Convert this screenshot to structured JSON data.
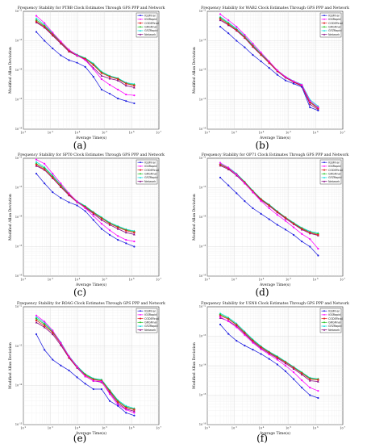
{
  "figure": {
    "panel_labels": [
      "(a)",
      "(b)",
      "(c)",
      "(d)",
      "(e)",
      "(f)"
    ]
  },
  "series_styles": [
    {
      "name": "IGSFinal",
      "color": "#2020e0",
      "marker": "circle"
    },
    {
      "name": "IGSRapid",
      "color": "#ff00ff",
      "marker": "circle"
    },
    {
      "name": "CODEFinal",
      "color": "#e02020",
      "marker": "square"
    },
    {
      "name": "GRGFinal",
      "color": "#20c020",
      "marker": "diamond"
    },
    {
      "name": "GFZRapid",
      "color": "#00d8d8",
      "marker": "triangle"
    },
    {
      "name": "Network",
      "color": "#800080",
      "marker": "triangle"
    }
  ],
  "chart_data": [
    {
      "type": "line",
      "title": "Frequency Stability for PTBB Clock Estimates Through GPS PPP and Network",
      "xlabel": "Average Time(s)",
      "ylabel": "Modified Allan Deviation",
      "xscale": "log",
      "yscale": "log",
      "xlim": [
        100,
        10000000
      ],
      "ylim": [
        1e-16,
        1e-12
      ],
      "legend": "top-right",
      "grid": true,
      "x": [
        300,
        600,
        1200,
        2400,
        4800,
        9600,
        19200,
        38400,
        76800,
        153600,
        307200,
        614400,
        1228800
      ],
      "series": [
        {
          "name": "IGSFinal",
          "values": [
            2e-13,
            1e-13,
            5.5e-14,
            3.2e-14,
            2.2e-14,
            1.8e-14,
            1.3e-14,
            6e-15,
            2.2e-15,
            1.6e-15,
            1.1e-15,
            9e-16,
            7.5e-16
          ]
        },
        {
          "name": "IGSRapid",
          "values": [
            7e-13,
            4e-13,
            1.9e-13,
            9.5e-14,
            5e-14,
            3.2e-14,
            2.2e-14,
            1.1e-14,
            5e-15,
            3.2e-15,
            2.2e-15,
            1.5e-15,
            1.4e-15
          ]
        },
        {
          "name": "CODEFinal",
          "values": [
            4.5e-13,
            3e-13,
            1.6e-13,
            8.5e-14,
            4.5e-14,
            3.2e-14,
            2.4e-14,
            1.5e-14,
            8e-15,
            6e-15,
            5e-15,
            3.5e-15,
            3e-15
          ]
        },
        {
          "name": "GRGFinal",
          "values": [
            5e-13,
            3.2e-13,
            1.7e-13,
            9e-14,
            4.7e-14,
            3.3e-14,
            2.5e-14,
            1.6e-14,
            8.5e-15,
            6.2e-15,
            5.2e-15,
            3.6e-15,
            3.2e-15
          ]
        },
        {
          "name": "GFZRapid",
          "values": [
            5.8e-13,
            3.5e-13,
            1.8e-13,
            9.2e-14,
            4.8e-14,
            3.4e-14,
            2.6e-14,
            1.7e-14,
            9e-15,
            6.5e-15,
            5.4e-15,
            3.8e-15,
            3.4e-15
          ]
        },
        {
          "name": "Network",
          "values": [
            4.2e-13,
            2.8e-13,
            1.5e-13,
            8e-14,
            4.3e-14,
            3.1e-14,
            2.3e-14,
            1.2e-14,
            6.5e-15,
            5.2e-15,
            4.5e-15,
            3e-15,
            2.6e-15
          ]
        }
      ]
    },
    {
      "type": "line",
      "title": "Frequency Stability for WAB2 Clock Estimates Through GPS PPP and Network",
      "xlabel": "Average Time(s)",
      "ylabel": "Modified Allan Deviation",
      "xscale": "log",
      "yscale": "log",
      "xlim": [
        100,
        10000000
      ],
      "ylim": [
        1e-16,
        1e-12
      ],
      "legend": "top-right",
      "grid": true,
      "x": [
        300,
        600,
        1200,
        2400,
        4800,
        9600,
        19200,
        38400,
        76800,
        153600,
        307200,
        614400,
        1228800
      ],
      "series": [
        {
          "name": "IGSFinal",
          "values": [
            3e-13,
            1.8e-13,
            1e-13,
            6e-14,
            3.3e-14,
            2e-14,
            1.2e-14,
            7e-15,
            4.5e-15,
            3.5e-15,
            2.7e-15,
            5.5e-16,
            4.3e-16
          ]
        },
        {
          "name": "IGSRapid",
          "values": [
            8e-13,
            5e-13,
            3e-13,
            1.6e-13,
            8e-14,
            4e-14,
            2e-14,
            1e-14,
            6e-15,
            4.2e-15,
            3.2e-15,
            9e-16,
            5.5e-16
          ]
        },
        {
          "name": "CODEFinal",
          "values": [
            5.5e-13,
            3.6e-13,
            2.3e-13,
            1.3e-13,
            6.5e-14,
            3.4e-14,
            1.8e-14,
            9.5e-15,
            5.8e-15,
            4e-15,
            3e-15,
            8e-16,
            5e-16
          ]
        },
        {
          "name": "GRGFinal",
          "values": [
            6e-13,
            3.9e-13,
            2.4e-13,
            1.35e-13,
            6.8e-14,
            3.5e-14,
            1.9e-14,
            9.8e-15,
            5.9e-15,
            4.1e-15,
            3.1e-15,
            8.5e-16,
            5.2e-16
          ]
        },
        {
          "name": "GFZRapid",
          "values": [
            6.5e-13,
            4.2e-13,
            2.6e-13,
            1.45e-13,
            7.2e-14,
            3.7e-14,
            1.95e-14,
            1e-14,
            6.1e-15,
            4.3e-15,
            3.3e-15,
            1e-15,
            6e-16
          ]
        },
        {
          "name": "Network",
          "values": [
            5e-13,
            3.4e-13,
            2.2e-13,
            1.25e-13,
            6.2e-14,
            3.3e-14,
            1.75e-14,
            9.2e-15,
            5.6e-15,
            3.9e-15,
            2.9e-15,
            7e-16,
            4.6e-16
          ]
        }
      ]
    },
    {
      "type": "line",
      "title": "Frequency Stability for SPT0 Clock Estimates Through GPS PPP and Network",
      "xlabel": "Average Time(s)",
      "ylabel": "Modified Allan Deviation",
      "xscale": "log",
      "yscale": "log",
      "xlim": [
        100,
        10000000
      ],
      "ylim": [
        1e-16,
        1e-12
      ],
      "legend": "top-right",
      "grid": true,
      "x": [
        300,
        600,
        1200,
        2400,
        4800,
        9600,
        19200,
        38400,
        76800,
        153600,
        307200,
        614400,
        1228800
      ],
      "series": [
        {
          "name": "IGSFinal",
          "values": [
            3e-13,
            1.4e-13,
            7e-14,
            4.5e-14,
            3.2e-14,
            2.5e-14,
            1.6e-14,
            8e-15,
            4e-15,
            2.5e-15,
            1.7e-15,
            1.3e-15,
            1e-15
          ]
        },
        {
          "name": "IGSRapid",
          "values": [
            9e-13,
            6.5e-13,
            3e-13,
            1.4e-13,
            6.5e-14,
            3.4e-14,
            2e-14,
            1.1e-14,
            6e-15,
            3.6e-15,
            2.3e-15,
            1.7e-15,
            1.5e-15
          ]
        },
        {
          "name": "CODEFinal",
          "values": [
            6e-13,
            4.2e-13,
            2.2e-13,
            1.1e-13,
            5.8e-14,
            3.3e-14,
            2.2e-14,
            1.4e-14,
            9e-15,
            6e-15,
            4.5e-15,
            3.5e-15,
            3e-15
          ]
        },
        {
          "name": "GRGFinal",
          "values": [
            6.5e-13,
            4.6e-13,
            2.4e-13,
            1.2e-13,
            6e-14,
            3.4e-14,
            2.3e-14,
            1.45e-14,
            9.5e-15,
            6.3e-15,
            4.7e-15,
            3.7e-15,
            3.2e-15
          ]
        },
        {
          "name": "GFZRapid",
          "values": [
            7.5e-13,
            5e-13,
            2.6e-13,
            1.25e-13,
            6.2e-14,
            3.5e-14,
            2.4e-14,
            1.5e-14,
            1e-14,
            6.6e-15,
            5e-15,
            3.9e-15,
            3.4e-15
          ]
        },
        {
          "name": "Network",
          "values": [
            5.5e-13,
            4e-13,
            2.1e-13,
            1.05e-13,
            5.5e-14,
            3.2e-14,
            2.1e-14,
            1.3e-14,
            8e-15,
            5.5e-15,
            4e-15,
            3e-15,
            2.6e-15
          ]
        }
      ]
    },
    {
      "type": "line",
      "title": "Frequency Stability for OP71 Clock Estimates Through GPS PPP and Network",
      "xlabel": "Average Time(s)",
      "ylabel": "Modified Allan Deviation",
      "xscale": "log",
      "yscale": "log",
      "xlim": [
        100,
        10000000
      ],
      "ylim": [
        1e-16,
        1e-12
      ],
      "legend": "top-right",
      "grid": true,
      "x": [
        300,
        600,
        1200,
        2400,
        4800,
        9600,
        19200,
        38400,
        76800,
        153600,
        307200,
        614400,
        1228800
      ],
      "series": [
        {
          "name": "IGSFinal",
          "values": [
            2.2e-13,
            1.2e-13,
            6.5e-14,
            3.5e-14,
            2e-14,
            1.3e-14,
            8.5e-15,
            5.5e-15,
            3.8e-15,
            2.5e-15,
            1.5e-15,
            1e-15,
            5e-16
          ]
        },
        {
          "name": "IGSRapid",
          "values": [
            7e-13,
            4.8e-13,
            2.8e-13,
            1.4e-13,
            7e-14,
            3.5e-14,
            2e-14,
            1.2e-14,
            7.5e-15,
            4.5e-15,
            2.7e-15,
            1.8e-15,
            8.5e-16
          ]
        },
        {
          "name": "CODEFinal",
          "values": [
            6e-13,
            4.5e-13,
            2.8e-13,
            1.5e-13,
            7.5e-14,
            4e-14,
            2.5e-14,
            1.5e-14,
            9.5e-15,
            6e-15,
            4e-15,
            3e-15,
            2.5e-15
          ]
        },
        {
          "name": "GRGFinal",
          "values": [
            6.2e-13,
            4.6e-13,
            2.9e-13,
            1.55e-13,
            7.7e-14,
            4.1e-14,
            2.6e-14,
            1.55e-14,
            9.8e-15,
            6.2e-15,
            4.2e-15,
            3.1e-15,
            2.7e-15
          ]
        },
        {
          "name": "GFZRapid",
          "values": [
            6.6e-13,
            4.9e-13,
            3e-13,
            1.6e-13,
            8e-14,
            4.2e-14,
            2.7e-14,
            1.6e-14,
            1e-14,
            6.5e-15,
            4.4e-15,
            3.3e-15,
            2.9e-15
          ]
        },
        {
          "name": "Network",
          "values": [
            5.6e-13,
            4.2e-13,
            2.6e-13,
            1.4e-13,
            7e-14,
            3.8e-14,
            2.4e-14,
            1.45e-14,
            9e-15,
            5.8e-15,
            3.8e-15,
            2.8e-15,
            2.4e-15
          ]
        }
      ]
    },
    {
      "type": "line",
      "title": "Frequency Stability for ROAG Clock Estimates Through GPS PPP and Network",
      "xlabel": "Average Time(s)",
      "ylabel": "Modified Allan Deviation",
      "xscale": "log",
      "yscale": "log",
      "xlim": [
        100,
        10000000
      ],
      "ylim": [
        1e-15,
        1e-12
      ],
      "legend": "top-right",
      "grid": true,
      "x": [
        300,
        600,
        1200,
        2400,
        4800,
        9600,
        19200,
        38400,
        76800,
        153600,
        307200,
        614400,
        1228800
      ],
      "series": [
        {
          "name": "IGSFinal",
          "values": [
            2e-13,
            8e-14,
            4.5e-14,
            3.2e-14,
            2.4e-14,
            1.6e-14,
            1.1e-14,
            8e-15,
            8e-15,
            4e-15,
            3e-15,
            2e-15,
            1.7e-15
          ]
        },
        {
          "name": "IGSRapid",
          "values": [
            6e-13,
            4.2e-13,
            2.5e-13,
            1.2e-13,
            5.5e-14,
            3e-14,
            1.7e-14,
            1.3e-14,
            1.25e-14,
            6e-15,
            3.2e-15,
            2.4e-15,
            2e-15
          ]
        },
        {
          "name": "CODEFinal",
          "values": [
            4.5e-13,
            3.3e-13,
            2.2e-13,
            1.15e-13,
            5.2e-14,
            2.9e-14,
            1.8e-14,
            1.4e-14,
            1.3e-14,
            7e-15,
            3.8e-15,
            2.7e-15,
            2.4e-15
          ]
        },
        {
          "name": "GRGFinal",
          "values": [
            5e-13,
            3.6e-13,
            2.3e-13,
            1.2e-13,
            5.4e-14,
            3e-14,
            1.9e-14,
            1.45e-14,
            1.35e-14,
            7.3e-15,
            4e-15,
            2.8e-15,
            2.5e-15
          ]
        },
        {
          "name": "GFZRapid",
          "values": [
            5.5e-13,
            3.9e-13,
            2.45e-13,
            1.25e-13,
            5.6e-14,
            3.1e-14,
            1.95e-14,
            1.5e-14,
            1.4e-14,
            7.6e-15,
            4.2e-15,
            3e-15,
            2.6e-15
          ]
        },
        {
          "name": "Network",
          "values": [
            4e-13,
            3e-13,
            2e-13,
            1.05e-13,
            5e-14,
            2.8e-14,
            1.7e-14,
            1.3e-14,
            1.2e-14,
            6.5e-15,
            3.5e-15,
            2.5e-15,
            2.2e-15
          ]
        }
      ]
    },
    {
      "type": "line",
      "title": "Frequency Stability for USN8 Clock Estimates Through GPS PPP and Network",
      "xlabel": "Average Time(s)",
      "ylabel": "Modified Allan Deviation",
      "xscale": "log",
      "yscale": "log",
      "xlim": [
        100,
        10000000
      ],
      "ylim": [
        1e-16,
        1e-12
      ],
      "legend": "top-right",
      "grid": true,
      "x": [
        300,
        600,
        1200,
        2400,
        4800,
        9600,
        19200,
        38400,
        76800,
        153600,
        307200,
        614400,
        1228800
      ],
      "series": [
        {
          "name": "IGSFinal",
          "values": [
            2.5e-13,
            1.2e-13,
            7e-14,
            4.8e-14,
            3.5e-14,
            2.5e-14,
            1.7e-14,
            1.1e-14,
            6.5e-15,
            3.5e-15,
            1.8e-15,
            1e-15,
            8e-16
          ]
        },
        {
          "name": "IGSRapid",
          "values": [
            4.5e-13,
            3.2e-13,
            2e-13,
            1.1e-13,
            6e-14,
            3.6e-14,
            2.4e-14,
            1.6e-14,
            1e-14,
            6e-15,
            3.2e-15,
            1.8e-15,
            1.4e-15
          ]
        },
        {
          "name": "CODEFinal",
          "values": [
            5e-13,
            3.8e-13,
            2.4e-13,
            1.3e-13,
            7e-14,
            4.2e-14,
            2.8e-14,
            1.9e-14,
            1.3e-14,
            8.5e-15,
            5.5e-15,
            3.5e-15,
            3.3e-15
          ]
        },
        {
          "name": "GRGFinal",
          "values": [
            5.5e-13,
            4e-13,
            2.5e-13,
            1.35e-13,
            7.3e-14,
            4.4e-14,
            2.9e-14,
            2e-14,
            1.35e-14,
            8.8e-15,
            5.8e-15,
            3.7e-15,
            3.5e-15
          ]
        },
        {
          "name": "GFZRapid",
          "values": [
            6e-13,
            4.3e-13,
            2.7e-13,
            1.45e-13,
            7.8e-14,
            4.6e-14,
            3e-14,
            2.1e-14,
            1.4e-14,
            9.2e-15,
            6e-15,
            3.9e-15,
            3.6e-15
          ]
        },
        {
          "name": "Network",
          "values": [
            4.2e-13,
            3.3e-13,
            2.2e-13,
            1.2e-13,
            6.5e-14,
            3.9e-14,
            2.6e-14,
            1.8e-14,
            1.2e-14,
            7.8e-15,
            5e-15,
            3.1e-15,
            2.9e-15
          ]
        }
      ]
    }
  ]
}
